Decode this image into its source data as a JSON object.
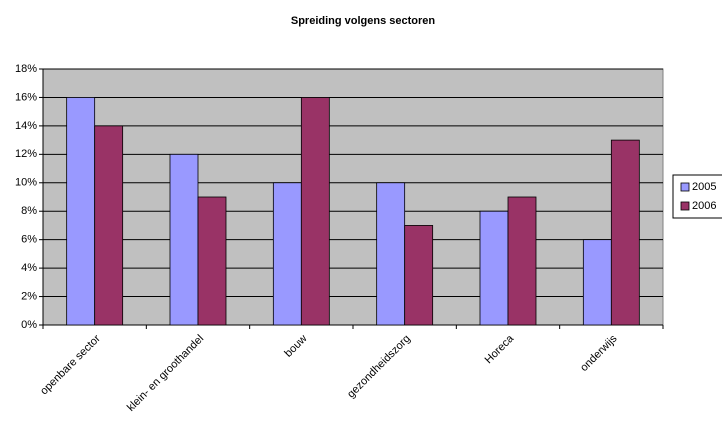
{
  "chart_data": {
    "type": "bar",
    "title": "Spreiding volgens sectoren",
    "categories": [
      "openbare sector",
      "klein- en groothandel",
      "bouw",
      "gezondheidszorg",
      "Horeca",
      "onderwijs"
    ],
    "series": [
      {
        "name": "2005",
        "color": "#9999ff",
        "values": [
          16,
          12,
          10,
          10,
          8,
          6
        ]
      },
      {
        "name": "2006",
        "color": "#993366",
        "values": [
          14,
          9,
          16,
          7,
          9,
          13
        ]
      }
    ],
    "ylim": [
      0,
      18
    ],
    "yticks": [
      {
        "value": 0,
        "label": "0%"
      },
      {
        "value": 2,
        "label": "2%"
      },
      {
        "value": 4,
        "label": "4%"
      },
      {
        "value": 6,
        "label": "6%"
      },
      {
        "value": 8,
        "label": "8%"
      },
      {
        "value": 10,
        "label": "10%"
      },
      {
        "value": 12,
        "label": "12%"
      },
      {
        "value": 14,
        "label": "14%"
      },
      {
        "value": 16,
        "label": "16%"
      },
      {
        "value": 18,
        "label": "18%"
      }
    ],
    "grid": true,
    "legend": "right"
  }
}
